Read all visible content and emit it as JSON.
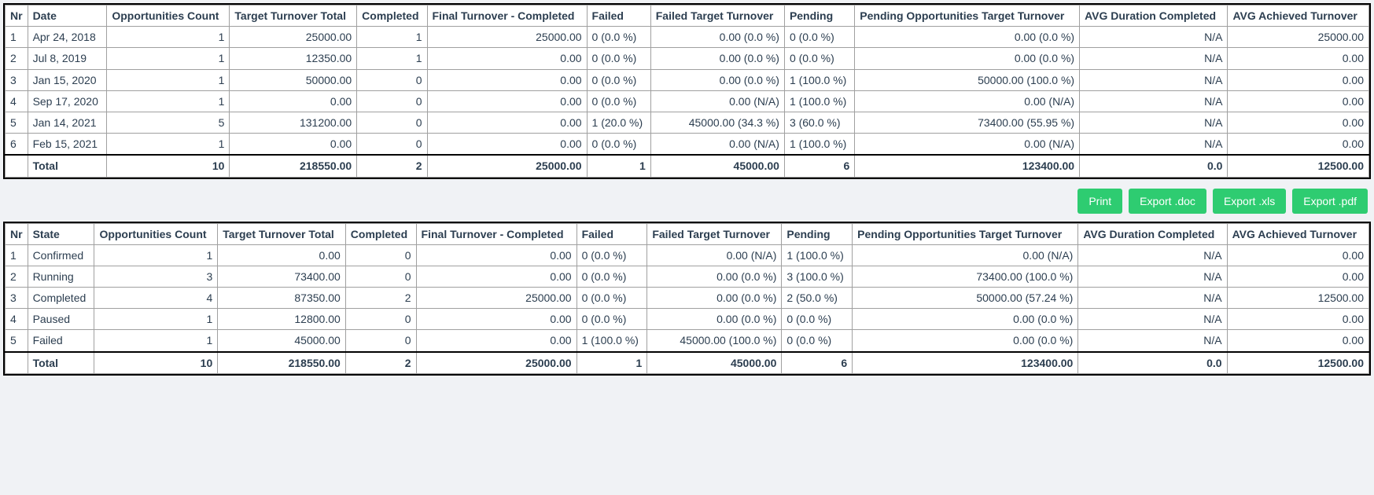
{
  "style": {
    "background_color": "#f0f2f5",
    "table_background": "#ffffff",
    "border_color": "#a0a0a0",
    "outer_border_color": "#000000",
    "text_color": "#2c3e50",
    "btn_background": "#2ecc71",
    "btn_text": "#ffffff",
    "font_family": "Segoe UI",
    "header_fontsize": 14,
    "cell_fontsize": 14,
    "cell_align_text": "left",
    "cell_align_num": "right"
  },
  "buttons": {
    "print": "Print",
    "export_doc": "Export .doc",
    "export_xls": "Export .xls",
    "export_pdf": "Export .pdf"
  },
  "columns_date": [
    "Nr",
    "Date",
    "Opportunities Count",
    "Target Turnover Total",
    "Completed",
    "Final Turnover - Completed",
    "Failed",
    "Failed Target Turnover",
    "Pending",
    "Pending Opportunities Target Turnover",
    "AVG Duration Completed",
    "AVG Achieved Turnover"
  ],
  "columns_state": [
    "Nr",
    "State",
    "Opportunities Count",
    "Target Turnover Total",
    "Completed",
    "Final Turnover - Completed",
    "Failed",
    "Failed Target Turnover",
    "Pending",
    "Pending Opportunities Target Turnover",
    "AVG Duration Completed",
    "AVG Achieved Turnover"
  ],
  "table1": {
    "rows": [
      {
        "nr": "1",
        "label": "Apr 24, 2018",
        "opps": "1",
        "target": "25000.00",
        "completed": "1",
        "final": "25000.00",
        "failed": "0 (0.0 %)",
        "failed_t": "0.00 (0.0 %)",
        "pending": "0 (0.0 %)",
        "pending_t": "0.00 (0.0 %)",
        "avg_dur": "N/A",
        "avg_ach": "25000.00"
      },
      {
        "nr": "2",
        "label": "Jul 8, 2019",
        "opps": "1",
        "target": "12350.00",
        "completed": "1",
        "final": "0.00",
        "failed": "0 (0.0 %)",
        "failed_t": "0.00 (0.0 %)",
        "pending": "0 (0.0 %)",
        "pending_t": "0.00 (0.0 %)",
        "avg_dur": "N/A",
        "avg_ach": "0.00"
      },
      {
        "nr": "3",
        "label": "Jan 15, 2020",
        "opps": "1",
        "target": "50000.00",
        "completed": "0",
        "final": "0.00",
        "failed": "0 (0.0 %)",
        "failed_t": "0.00 (0.0 %)",
        "pending": "1 (100.0 %)",
        "pending_t": "50000.00 (100.0 %)",
        "avg_dur": "N/A",
        "avg_ach": "0.00"
      },
      {
        "nr": "4",
        "label": "Sep 17, 2020",
        "opps": "1",
        "target": "0.00",
        "completed": "0",
        "final": "0.00",
        "failed": "0 (0.0 %)",
        "failed_t": "0.00 (N/A)",
        "pending": "1 (100.0 %)",
        "pending_t": "0.00 (N/A)",
        "avg_dur": "N/A",
        "avg_ach": "0.00"
      },
      {
        "nr": "5",
        "label": "Jan 14, 2021",
        "opps": "5",
        "target": "131200.00",
        "completed": "0",
        "final": "0.00",
        "failed": "1 (20.0 %)",
        "failed_t": "45000.00 (34.3 %)",
        "pending": "3 (60.0 %)",
        "pending_t": "73400.00 (55.95 %)",
        "avg_dur": "N/A",
        "avg_ach": "0.00"
      },
      {
        "nr": "6",
        "label": "Feb 15, 2021",
        "opps": "1",
        "target": "0.00",
        "completed": "0",
        "final": "0.00",
        "failed": "0 (0.0 %)",
        "failed_t": "0.00 (N/A)",
        "pending": "1 (100.0 %)",
        "pending_t": "0.00 (N/A)",
        "avg_dur": "N/A",
        "avg_ach": "0.00"
      }
    ],
    "total": {
      "label": "Total",
      "opps": "10",
      "target": "218550.00",
      "completed": "2",
      "final": "25000.00",
      "failed": "1",
      "failed_t": "45000.00",
      "pending": "6",
      "pending_t": "123400.00",
      "avg_dur": "0.0",
      "avg_ach": "12500.00"
    }
  },
  "table2": {
    "rows": [
      {
        "nr": "1",
        "label": "Confirmed",
        "opps": "1",
        "target": "0.00",
        "completed": "0",
        "final": "0.00",
        "failed": "0 (0.0 %)",
        "failed_t": "0.00 (N/A)",
        "pending": "1 (100.0 %)",
        "pending_t": "0.00 (N/A)",
        "avg_dur": "N/A",
        "avg_ach": "0.00"
      },
      {
        "nr": "2",
        "label": "Running",
        "opps": "3",
        "target": "73400.00",
        "completed": "0",
        "final": "0.00",
        "failed": "0 (0.0 %)",
        "failed_t": "0.00 (0.0 %)",
        "pending": "3 (100.0 %)",
        "pending_t": "73400.00 (100.0 %)",
        "avg_dur": "N/A",
        "avg_ach": "0.00"
      },
      {
        "nr": "3",
        "label": "Completed",
        "opps": "4",
        "target": "87350.00",
        "completed": "2",
        "final": "25000.00",
        "failed": "0 (0.0 %)",
        "failed_t": "0.00 (0.0 %)",
        "pending": "2 (50.0 %)",
        "pending_t": "50000.00 (57.24 %)",
        "avg_dur": "N/A",
        "avg_ach": "12500.00"
      },
      {
        "nr": "4",
        "label": "Paused",
        "opps": "1",
        "target": "12800.00",
        "completed": "0",
        "final": "0.00",
        "failed": "0 (0.0 %)",
        "failed_t": "0.00 (0.0 %)",
        "pending": "0 (0.0 %)",
        "pending_t": "0.00 (0.0 %)",
        "avg_dur": "N/A",
        "avg_ach": "0.00"
      },
      {
        "nr": "5",
        "label": "Failed",
        "opps": "1",
        "target": "45000.00",
        "completed": "0",
        "final": "0.00",
        "failed": "1 (100.0 %)",
        "failed_t": "45000.00 (100.0 %)",
        "pending": "0 (0.0 %)",
        "pending_t": "0.00 (0.0 %)",
        "avg_dur": "N/A",
        "avg_ach": "0.00"
      }
    ],
    "total": {
      "label": "Total",
      "opps": "10",
      "target": "218550.00",
      "completed": "2",
      "final": "25000.00",
      "failed": "1",
      "failed_t": "45000.00",
      "pending": "6",
      "pending_t": "123400.00",
      "avg_dur": "0.0",
      "avg_ach": "12500.00"
    }
  }
}
